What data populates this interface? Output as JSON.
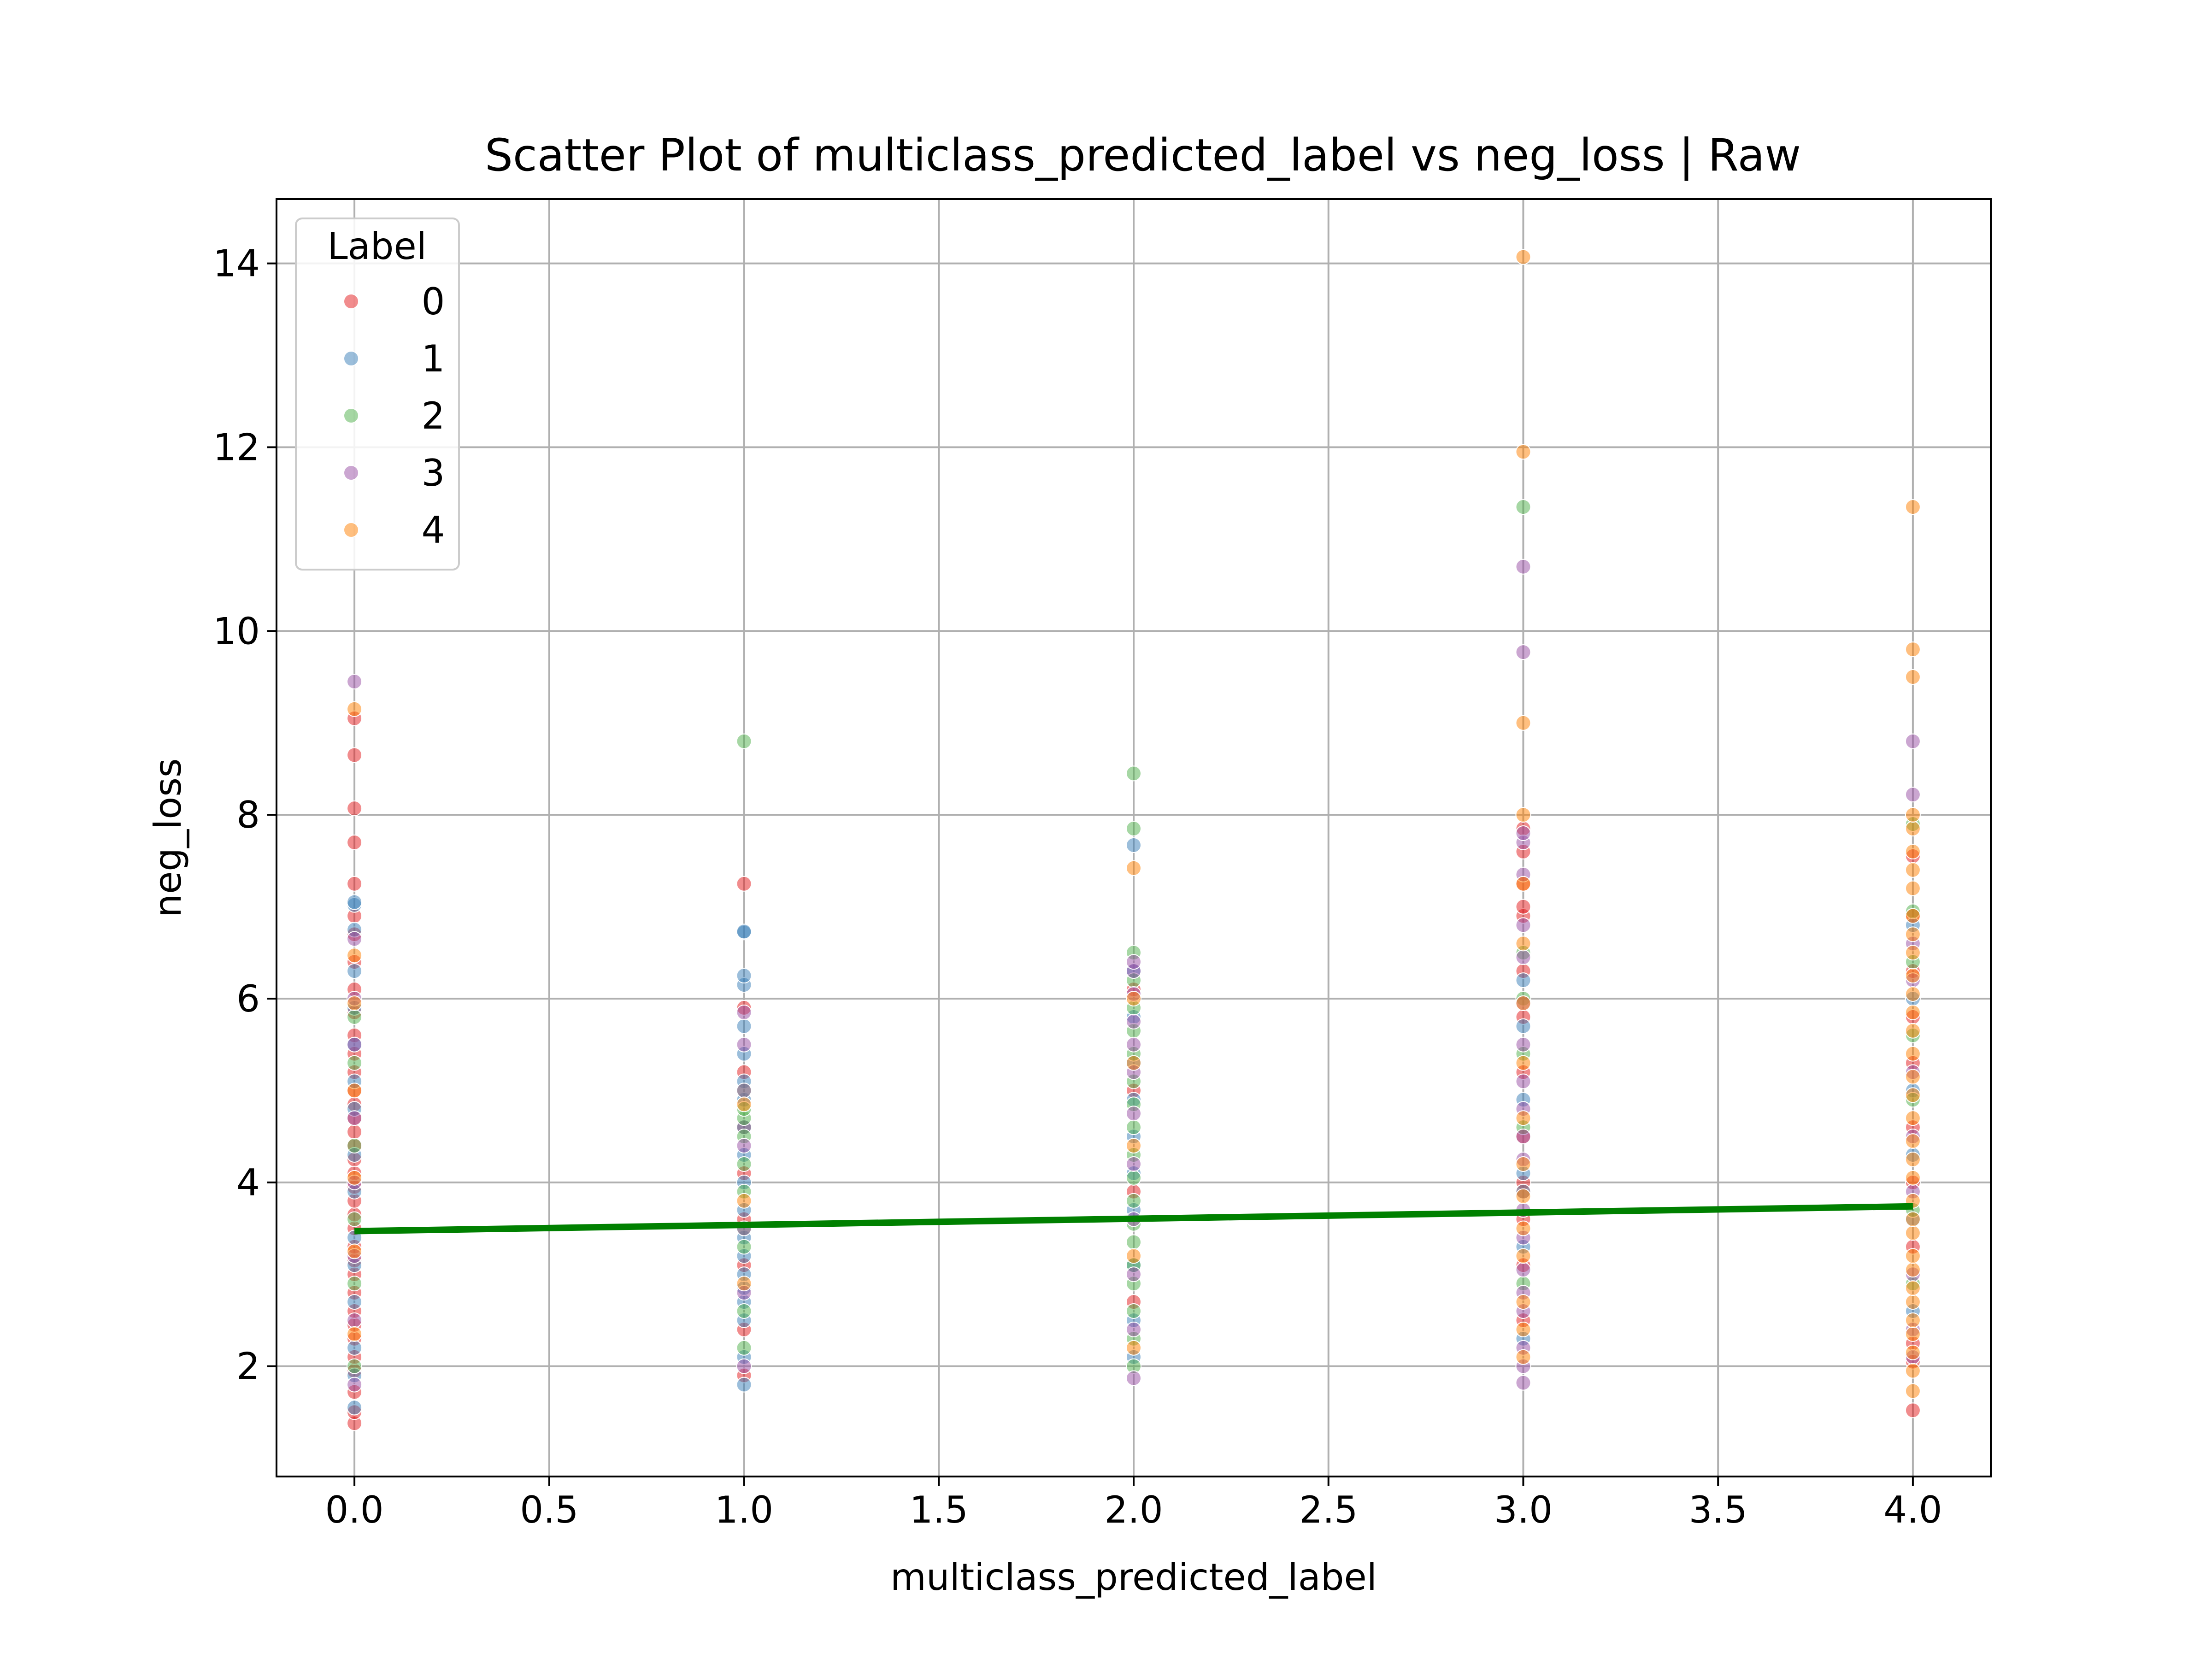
{
  "chart_data": {
    "type": "scatter",
    "title": "Scatter Plot of multiclass_predicted_label vs neg_loss | Raw",
    "xlabel": "multiclass_predicted_label",
    "ylabel": "neg_loss",
    "xlim": [
      -0.2,
      4.2
    ],
    "ylim": [
      0.8,
      14.7
    ],
    "xticks": [
      0.0,
      0.5,
      1.0,
      1.5,
      2.0,
      2.5,
      3.0,
      3.5,
      4.0
    ],
    "xtick_labels": [
      "0.0",
      "0.5",
      "1.0",
      "1.5",
      "2.0",
      "2.5",
      "3.0",
      "3.5",
      "4.0"
    ],
    "yticks": [
      2,
      4,
      6,
      8,
      10,
      12,
      14
    ],
    "ytick_labels": [
      "2",
      "4",
      "6",
      "8",
      "10",
      "12",
      "14"
    ],
    "grid": true,
    "legend": {
      "title": "Label",
      "placement": "top-left"
    },
    "series": [
      {
        "name": "0",
        "color": "#e41a1c",
        "points": [
          [
            0,
            1.38
          ],
          [
            0,
            1.5
          ],
          [
            0,
            1.72
          ],
          [
            0,
            1.95
          ],
          [
            0,
            2.1
          ],
          [
            0,
            2.3
          ],
          [
            0,
            2.45
          ],
          [
            0,
            2.6
          ],
          [
            0,
            2.8
          ],
          [
            0,
            3.0
          ],
          [
            0,
            3.15
          ],
          [
            0,
            3.3
          ],
          [
            0,
            3.5
          ],
          [
            0,
            3.65
          ],
          [
            0,
            3.8
          ],
          [
            0,
            3.95
          ],
          [
            0,
            4.1
          ],
          [
            0,
            4.25
          ],
          [
            0,
            4.4
          ],
          [
            0,
            4.55
          ],
          [
            0,
            4.7
          ],
          [
            0,
            4.85
          ],
          [
            0,
            5.0
          ],
          [
            0,
            5.2
          ],
          [
            0,
            5.4
          ],
          [
            0,
            5.6
          ],
          [
            0,
            5.85
          ],
          [
            0,
            6.1
          ],
          [
            0,
            6.4
          ],
          [
            0,
            6.7
          ],
          [
            0,
            6.9
          ],
          [
            0,
            7.25
          ],
          [
            0,
            7.7
          ],
          [
            0,
            8.07
          ],
          [
            0,
            8.65
          ],
          [
            0,
            9.05
          ],
          [
            1,
            1.9
          ],
          [
            1,
            2.4
          ],
          [
            1,
            3.1
          ],
          [
            1,
            3.6
          ],
          [
            1,
            4.1
          ],
          [
            1,
            4.6
          ],
          [
            1,
            5.2
          ],
          [
            1,
            5.9
          ],
          [
            1,
            7.25
          ],
          [
            2,
            2.7
          ],
          [
            2,
            3.9
          ],
          [
            2,
            5.0
          ],
          [
            2,
            6.1
          ],
          [
            3,
            2.5
          ],
          [
            3,
            3.1
          ],
          [
            3,
            3.6
          ],
          [
            3,
            4.0
          ],
          [
            3,
            4.5
          ],
          [
            3,
            5.2
          ],
          [
            3,
            5.8
          ],
          [
            3,
            6.3
          ],
          [
            3,
            6.9
          ],
          [
            3,
            7.0
          ],
          [
            3,
            7.25
          ],
          [
            3,
            7.6
          ],
          [
            3,
            7.85
          ],
          [
            4,
            1.52
          ],
          [
            4,
            2.05
          ],
          [
            4,
            2.25
          ],
          [
            4,
            3.3
          ],
          [
            4,
            4.0
          ],
          [
            4,
            4.6
          ],
          [
            4,
            5.3
          ],
          [
            4,
            5.8
          ],
          [
            4,
            6.3
          ],
          [
            4,
            6.9
          ],
          [
            4,
            7.55
          ]
        ]
      },
      {
        "name": "1",
        "color": "#377eb8",
        "points": [
          [
            0,
            1.55
          ],
          [
            0,
            1.9
          ],
          [
            0,
            2.2
          ],
          [
            0,
            2.7
          ],
          [
            0,
            3.1
          ],
          [
            0,
            3.4
          ],
          [
            0,
            3.9
          ],
          [
            0,
            4.3
          ],
          [
            0,
            4.8
          ],
          [
            0,
            5.1
          ],
          [
            0,
            5.5
          ],
          [
            0,
            5.9
          ],
          [
            0,
            6.3
          ],
          [
            0,
            6.75
          ],
          [
            0,
            7.02
          ],
          [
            0,
            7.05
          ],
          [
            1,
            1.8
          ],
          [
            1,
            2.1
          ],
          [
            1,
            2.5
          ],
          [
            1,
            2.7
          ],
          [
            1,
            2.85
          ],
          [
            1,
            3.0
          ],
          [
            1,
            3.2
          ],
          [
            1,
            3.4
          ],
          [
            1,
            3.7
          ],
          [
            1,
            4.0
          ],
          [
            1,
            4.3
          ],
          [
            1,
            4.6
          ],
          [
            1,
            4.9
          ],
          [
            1,
            5.1
          ],
          [
            1,
            5.4
          ],
          [
            1,
            5.7
          ],
          [
            1,
            6.15
          ],
          [
            1,
            6.25
          ],
          [
            1,
            6.72
          ],
          [
            1,
            6.73
          ],
          [
            2,
            2.1
          ],
          [
            2,
            2.5
          ],
          [
            2,
            3.1
          ],
          [
            2,
            3.7
          ],
          [
            2,
            4.1
          ],
          [
            2,
            4.5
          ],
          [
            2,
            4.9
          ],
          [
            2,
            5.3
          ],
          [
            2,
            5.8
          ],
          [
            2,
            6.3
          ],
          [
            2,
            7.67
          ],
          [
            3,
            2.3
          ],
          [
            3,
            3.3
          ],
          [
            3,
            4.1
          ],
          [
            3,
            4.9
          ],
          [
            3,
            5.7
          ],
          [
            3,
            6.2
          ],
          [
            4,
            2.6
          ],
          [
            4,
            3.6
          ],
          [
            4,
            4.3
          ],
          [
            4,
            5.0
          ],
          [
            4,
            6.0
          ],
          [
            4,
            6.8
          ]
        ]
      },
      {
        "name": "2",
        "color": "#4daf4a",
        "points": [
          [
            0,
            2.0
          ],
          [
            0,
            2.9
          ],
          [
            0,
            3.6
          ],
          [
            0,
            4.4
          ],
          [
            0,
            5.3
          ],
          [
            0,
            5.8
          ],
          [
            1,
            2.2
          ],
          [
            1,
            2.6
          ],
          [
            1,
            3.3
          ],
          [
            1,
            3.5
          ],
          [
            1,
            3.9
          ],
          [
            1,
            4.2
          ],
          [
            1,
            4.5
          ],
          [
            1,
            4.7
          ],
          [
            1,
            4.8
          ],
          [
            1,
            5.0
          ],
          [
            1,
            8.8
          ],
          [
            2,
            2.0
          ],
          [
            2,
            2.3
          ],
          [
            2,
            2.6
          ],
          [
            2,
            2.9
          ],
          [
            2,
            3.1
          ],
          [
            2,
            3.35
          ],
          [
            2,
            3.55
          ],
          [
            2,
            3.8
          ],
          [
            2,
            4.05
          ],
          [
            2,
            4.3
          ],
          [
            2,
            4.6
          ],
          [
            2,
            4.85
          ],
          [
            2,
            5.1
          ],
          [
            2,
            5.4
          ],
          [
            2,
            5.65
          ],
          [
            2,
            5.9
          ],
          [
            2,
            6.2
          ],
          [
            2,
            6.5
          ],
          [
            2,
            7.85
          ],
          [
            2,
            8.45
          ],
          [
            3,
            2.9
          ],
          [
            3,
            3.9
          ],
          [
            3,
            4.6
          ],
          [
            3,
            5.4
          ],
          [
            3,
            6.0
          ],
          [
            3,
            6.5
          ],
          [
            3,
            11.35
          ],
          [
            4,
            2.9
          ],
          [
            4,
            3.7
          ],
          [
            4,
            4.9
          ],
          [
            4,
            5.6
          ],
          [
            4,
            6.4
          ],
          [
            4,
            6.95
          ],
          [
            4,
            7.9
          ]
        ]
      },
      {
        "name": "3",
        "color": "#984ea3",
        "points": [
          [
            0,
            1.8
          ],
          [
            0,
            2.5
          ],
          [
            0,
            3.2
          ],
          [
            0,
            4.0
          ],
          [
            0,
            4.7
          ],
          [
            0,
            5.5
          ],
          [
            0,
            6.0
          ],
          [
            0,
            6.65
          ],
          [
            0,
            9.45
          ],
          [
            1,
            2.0
          ],
          [
            1,
            2.8
          ],
          [
            1,
            3.5
          ],
          [
            1,
            4.4
          ],
          [
            1,
            5.0
          ],
          [
            1,
            5.5
          ],
          [
            1,
            5.85
          ],
          [
            2,
            1.87
          ],
          [
            2,
            2.4
          ],
          [
            2,
            3.0
          ],
          [
            2,
            3.6
          ],
          [
            2,
            4.2
          ],
          [
            2,
            4.75
          ],
          [
            2,
            5.2
          ],
          [
            2,
            5.5
          ],
          [
            2,
            5.75
          ],
          [
            2,
            6.05
          ],
          [
            2,
            6.3
          ],
          [
            2,
            6.4
          ],
          [
            3,
            1.82
          ],
          [
            3,
            2.0
          ],
          [
            3,
            2.2
          ],
          [
            3,
            2.6
          ],
          [
            3,
            2.8
          ],
          [
            3,
            3.05
          ],
          [
            3,
            3.4
          ],
          [
            3,
            3.7
          ],
          [
            3,
            3.9
          ],
          [
            3,
            4.25
          ],
          [
            3,
            4.5
          ],
          [
            3,
            4.8
          ],
          [
            3,
            5.1
          ],
          [
            3,
            5.5
          ],
          [
            3,
            5.95
          ],
          [
            3,
            6.45
          ],
          [
            3,
            6.8
          ],
          [
            3,
            7.35
          ],
          [
            3,
            7.7
          ],
          [
            3,
            7.8
          ],
          [
            3,
            9.77
          ],
          [
            3,
            10.7
          ],
          [
            4,
            2.1
          ],
          [
            4,
            2.4
          ],
          [
            4,
            3.0
          ],
          [
            4,
            3.9
          ],
          [
            4,
            4.5
          ],
          [
            4,
            5.2
          ],
          [
            4,
            6.2
          ],
          [
            4,
            6.6
          ],
          [
            4,
            8.22
          ],
          [
            4,
            8.8
          ]
        ]
      },
      {
        "name": "4",
        "color": "#ff7f00",
        "points": [
          [
            0,
            2.35
          ],
          [
            0,
            3.25
          ],
          [
            0,
            4.05
          ],
          [
            0,
            5.0
          ],
          [
            0,
            5.95
          ],
          [
            0,
            6.47
          ],
          [
            0,
            9.15
          ],
          [
            1,
            2.9
          ],
          [
            1,
            3.8
          ],
          [
            1,
            4.85
          ],
          [
            2,
            2.2
          ],
          [
            2,
            3.2
          ],
          [
            2,
            4.4
          ],
          [
            2,
            5.3
          ],
          [
            2,
            6.0
          ],
          [
            2,
            7.42
          ],
          [
            3,
            2.1
          ],
          [
            3,
            2.4
          ],
          [
            3,
            2.7
          ],
          [
            3,
            3.2
          ],
          [
            3,
            3.5
          ],
          [
            3,
            3.85
          ],
          [
            3,
            4.2
          ],
          [
            3,
            4.7
          ],
          [
            3,
            5.3
          ],
          [
            3,
            5.95
          ],
          [
            3,
            6.6
          ],
          [
            3,
            7.25
          ],
          [
            3,
            8.0
          ],
          [
            3,
            9.0
          ],
          [
            3,
            11.95
          ],
          [
            3,
            14.07
          ],
          [
            4,
            1.73
          ],
          [
            4,
            1.95
          ],
          [
            4,
            2.15
          ],
          [
            4,
            2.35
          ],
          [
            4,
            2.5
          ],
          [
            4,
            2.7
          ],
          [
            4,
            2.85
          ],
          [
            4,
            3.05
          ],
          [
            4,
            3.2
          ],
          [
            4,
            3.45
          ],
          [
            4,
            3.6
          ],
          [
            4,
            3.8
          ],
          [
            4,
            4.05
          ],
          [
            4,
            4.25
          ],
          [
            4,
            4.45
          ],
          [
            4,
            4.7
          ],
          [
            4,
            4.95
          ],
          [
            4,
            5.15
          ],
          [
            4,
            5.4
          ],
          [
            4,
            5.65
          ],
          [
            4,
            5.85
          ],
          [
            4,
            6.05
          ],
          [
            4,
            6.25
          ],
          [
            4,
            6.5
          ],
          [
            4,
            6.7
          ],
          [
            4,
            6.9
          ],
          [
            4,
            7.2
          ],
          [
            4,
            7.4
          ],
          [
            4,
            7.6
          ],
          [
            4,
            7.85
          ],
          [
            4,
            8.0
          ],
          [
            4,
            9.5
          ],
          [
            4,
            9.8
          ],
          [
            4,
            11.35
          ]
        ]
      }
    ],
    "trend_line": {
      "color": "#008000",
      "points": [
        [
          0,
          3.47
        ],
        [
          4,
          3.74
        ]
      ]
    }
  }
}
